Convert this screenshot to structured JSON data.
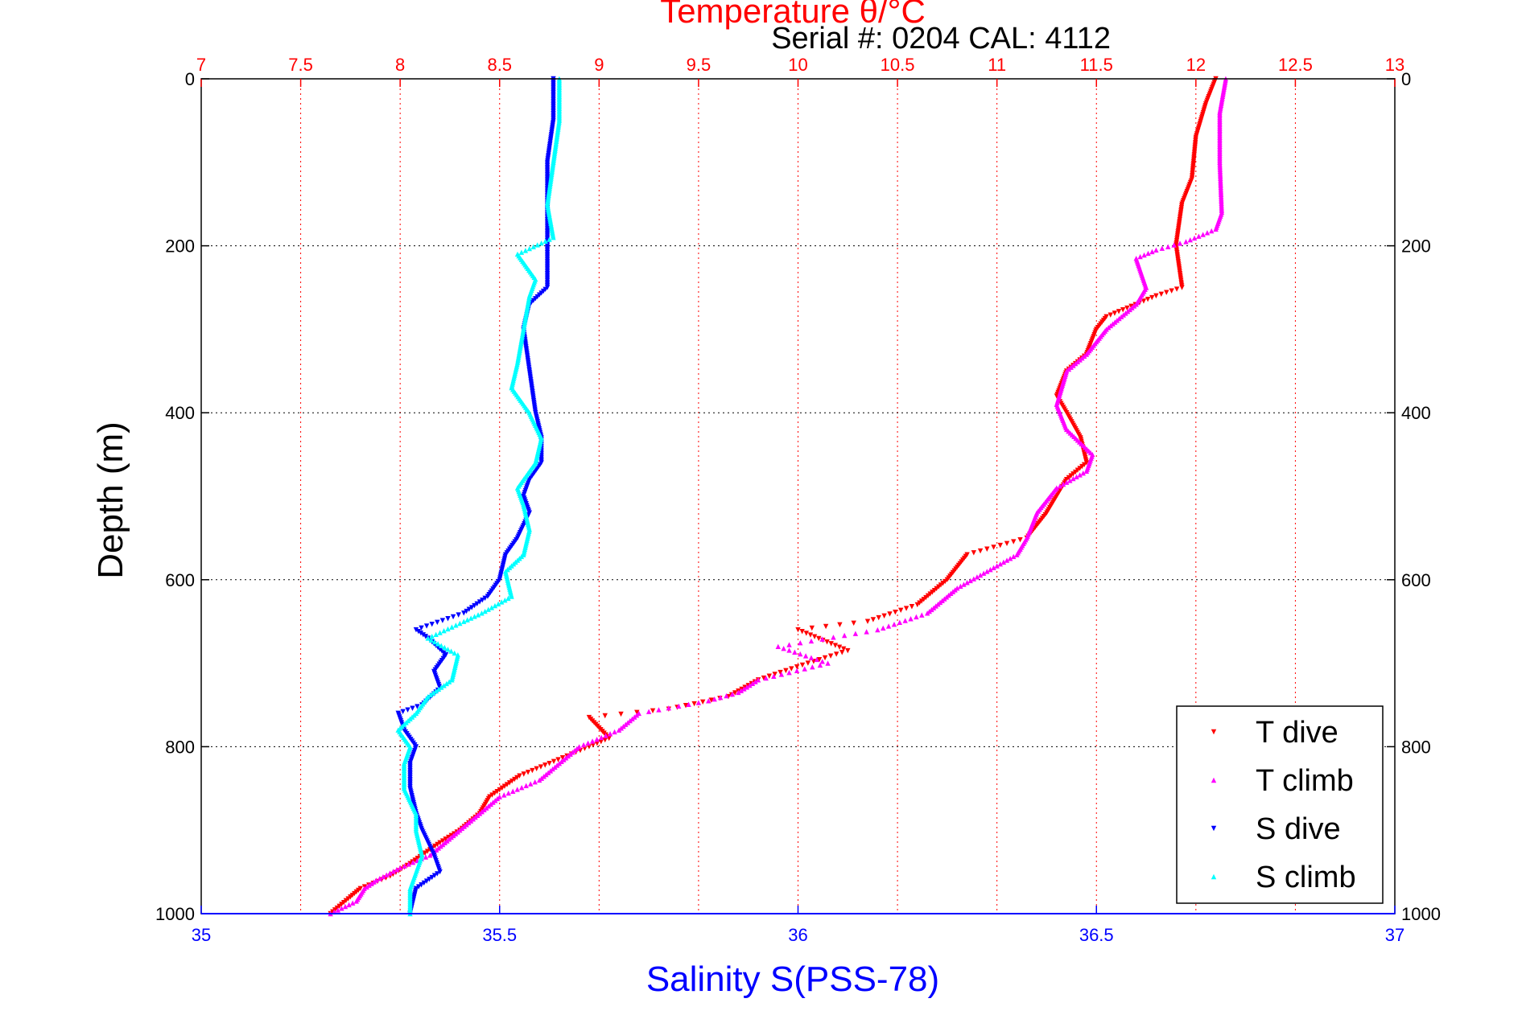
{
  "chart_data": {
    "type": "scatter",
    "title": "Temperature θ/°C",
    "subtitle": "Serial #: 0204  CAL: 4112",
    "ylabel": "Depth (m)",
    "xlabel_bottom": "Salinity S(PSS-78)",
    "xlabel_top": "Temperature θ/°C",
    "ylim": [
      0,
      1000
    ],
    "y_reversed": true,
    "yticks": [
      0,
      200,
      400,
      600,
      800,
      1000
    ],
    "xlim_top": [
      7,
      13
    ],
    "xticks_top": [
      7,
      7.5,
      8,
      8.5,
      9,
      9.5,
      10,
      10.5,
      11,
      11.5,
      12,
      12.5,
      13
    ],
    "xlim_bottom": [
      35,
      37
    ],
    "xticks_bottom": [
      35,
      35.5,
      36,
      36.5,
      37
    ],
    "grid": true,
    "legend_position": "bottom-right",
    "colors": {
      "temperature_axis": "#ff0000",
      "salinity_axis": "#0000ff",
      "grid": "#ff0000",
      "ygrid": "#000000"
    },
    "series": [
      {
        "name": "T dive",
        "axis": "temperature",
        "color": "#ff0000",
        "marker": "triangle-down",
        "points": [
          [
            12.1,
            0
          ],
          [
            12.05,
            30
          ],
          [
            12.0,
            70
          ],
          [
            11.98,
            120
          ],
          [
            11.93,
            150
          ],
          [
            11.9,
            200
          ],
          [
            11.93,
            250
          ],
          [
            11.8,
            260
          ],
          [
            11.55,
            285
          ],
          [
            11.5,
            300
          ],
          [
            11.45,
            330
          ],
          [
            11.35,
            350
          ],
          [
            11.3,
            380
          ],
          [
            11.35,
            400
          ],
          [
            11.42,
            430
          ],
          [
            11.45,
            460
          ],
          [
            11.35,
            480
          ],
          [
            11.25,
            520
          ],
          [
            11.15,
            550
          ],
          [
            10.85,
            570
          ],
          [
            10.75,
            600
          ],
          [
            10.6,
            630
          ],
          [
            10.35,
            650
          ],
          [
            10.0,
            660
          ],
          [
            10.25,
            685
          ],
          [
            10.05,
            700
          ],
          [
            9.8,
            720
          ],
          [
            9.65,
            740
          ],
          [
            9.35,
            755
          ],
          [
            8.95,
            765
          ],
          [
            9.05,
            790
          ],
          [
            8.95,
            800
          ],
          [
            8.75,
            820
          ],
          [
            8.6,
            835
          ],
          [
            8.45,
            860
          ],
          [
            8.4,
            880
          ],
          [
            8.3,
            900
          ],
          [
            8.2,
            915
          ],
          [
            8.05,
            940
          ],
          [
            7.95,
            955
          ],
          [
            7.8,
            970
          ],
          [
            7.75,
            980
          ],
          [
            7.65,
            1000
          ]
        ]
      },
      {
        "name": "T climb",
        "axis": "temperature",
        "color": "#ff00ff",
        "marker": "triangle-up",
        "points": [
          [
            12.15,
            0
          ],
          [
            12.12,
            40
          ],
          [
            12.12,
            100
          ],
          [
            12.13,
            160
          ],
          [
            12.1,
            180
          ],
          [
            11.95,
            195
          ],
          [
            11.8,
            205
          ],
          [
            11.7,
            215
          ],
          [
            11.75,
            250
          ],
          [
            11.7,
            270
          ],
          [
            11.55,
            300
          ],
          [
            11.45,
            330
          ],
          [
            11.35,
            350
          ],
          [
            11.3,
            390
          ],
          [
            11.35,
            420
          ],
          [
            11.48,
            450
          ],
          [
            11.45,
            470
          ],
          [
            11.3,
            490
          ],
          [
            11.2,
            520
          ],
          [
            11.15,
            550
          ],
          [
            11.1,
            570
          ],
          [
            10.95,
            590
          ],
          [
            10.8,
            610
          ],
          [
            10.65,
            640
          ],
          [
            10.4,
            660
          ],
          [
            9.9,
            680
          ],
          [
            10.15,
            700
          ],
          [
            9.8,
            720
          ],
          [
            9.7,
            735
          ],
          [
            9.55,
            745
          ],
          [
            9.2,
            760
          ],
          [
            9.1,
            780
          ],
          [
            8.9,
            800
          ],
          [
            8.8,
            820
          ],
          [
            8.7,
            840
          ],
          [
            8.5,
            860
          ],
          [
            8.4,
            880
          ],
          [
            8.3,
            900
          ],
          [
            8.15,
            930
          ],
          [
            8.0,
            945
          ],
          [
            7.88,
            960
          ],
          [
            7.82,
            970
          ],
          [
            7.78,
            985
          ],
          [
            7.65,
            1000
          ]
        ]
      },
      {
        "name": "S dive",
        "axis": "salinity",
        "color": "#0000ff",
        "marker": "triangle-down",
        "points": [
          [
            35.59,
            0
          ],
          [
            35.59,
            50
          ],
          [
            35.58,
            100
          ],
          [
            35.58,
            150
          ],
          [
            35.58,
            200
          ],
          [
            35.58,
            250
          ],
          [
            35.55,
            270
          ],
          [
            35.54,
            300
          ],
          [
            35.55,
            350
          ],
          [
            35.56,
            400
          ],
          [
            35.57,
            430
          ],
          [
            35.57,
            460
          ],
          [
            35.55,
            480
          ],
          [
            35.54,
            500
          ],
          [
            35.55,
            520
          ],
          [
            35.53,
            550
          ],
          [
            35.51,
            570
          ],
          [
            35.5,
            600
          ],
          [
            35.48,
            620
          ],
          [
            35.44,
            640
          ],
          [
            35.36,
            660
          ],
          [
            35.38,
            670
          ],
          [
            35.41,
            690
          ],
          [
            35.39,
            710
          ],
          [
            35.4,
            730
          ],
          [
            35.37,
            750
          ],
          [
            35.33,
            760
          ],
          [
            35.34,
            780
          ],
          [
            35.36,
            800
          ],
          [
            35.35,
            820
          ],
          [
            35.35,
            850
          ],
          [
            35.36,
            880
          ],
          [
            35.37,
            900
          ],
          [
            35.39,
            930
          ],
          [
            35.4,
            950
          ],
          [
            35.36,
            970
          ],
          [
            35.35,
            1000
          ]
        ]
      },
      {
        "name": "S climb",
        "axis": "salinity",
        "color": "#00ffff",
        "marker": "triangle-up",
        "points": [
          [
            35.6,
            0
          ],
          [
            35.6,
            50
          ],
          [
            35.59,
            100
          ],
          [
            35.58,
            150
          ],
          [
            35.59,
            190
          ],
          [
            35.53,
            210
          ],
          [
            35.56,
            240
          ],
          [
            35.55,
            260
          ],
          [
            35.54,
            300
          ],
          [
            35.53,
            340
          ],
          [
            35.52,
            370
          ],
          [
            35.55,
            400
          ],
          [
            35.57,
            430
          ],
          [
            35.56,
            460
          ],
          [
            35.53,
            490
          ],
          [
            35.54,
            510
          ],
          [
            35.55,
            540
          ],
          [
            35.54,
            570
          ],
          [
            35.51,
            590
          ],
          [
            35.52,
            620
          ],
          [
            35.47,
            640
          ],
          [
            35.44,
            650
          ],
          [
            35.38,
            670
          ],
          [
            35.43,
            690
          ],
          [
            35.42,
            720
          ],
          [
            35.38,
            740
          ],
          [
            35.36,
            760
          ],
          [
            35.33,
            780
          ],
          [
            35.35,
            800
          ],
          [
            35.34,
            820
          ],
          [
            35.34,
            850
          ],
          [
            35.36,
            880
          ],
          [
            35.36,
            900
          ],
          [
            35.37,
            930
          ],
          [
            35.36,
            950
          ],
          [
            35.35,
            970
          ],
          [
            35.35,
            1000
          ]
        ]
      }
    ]
  }
}
